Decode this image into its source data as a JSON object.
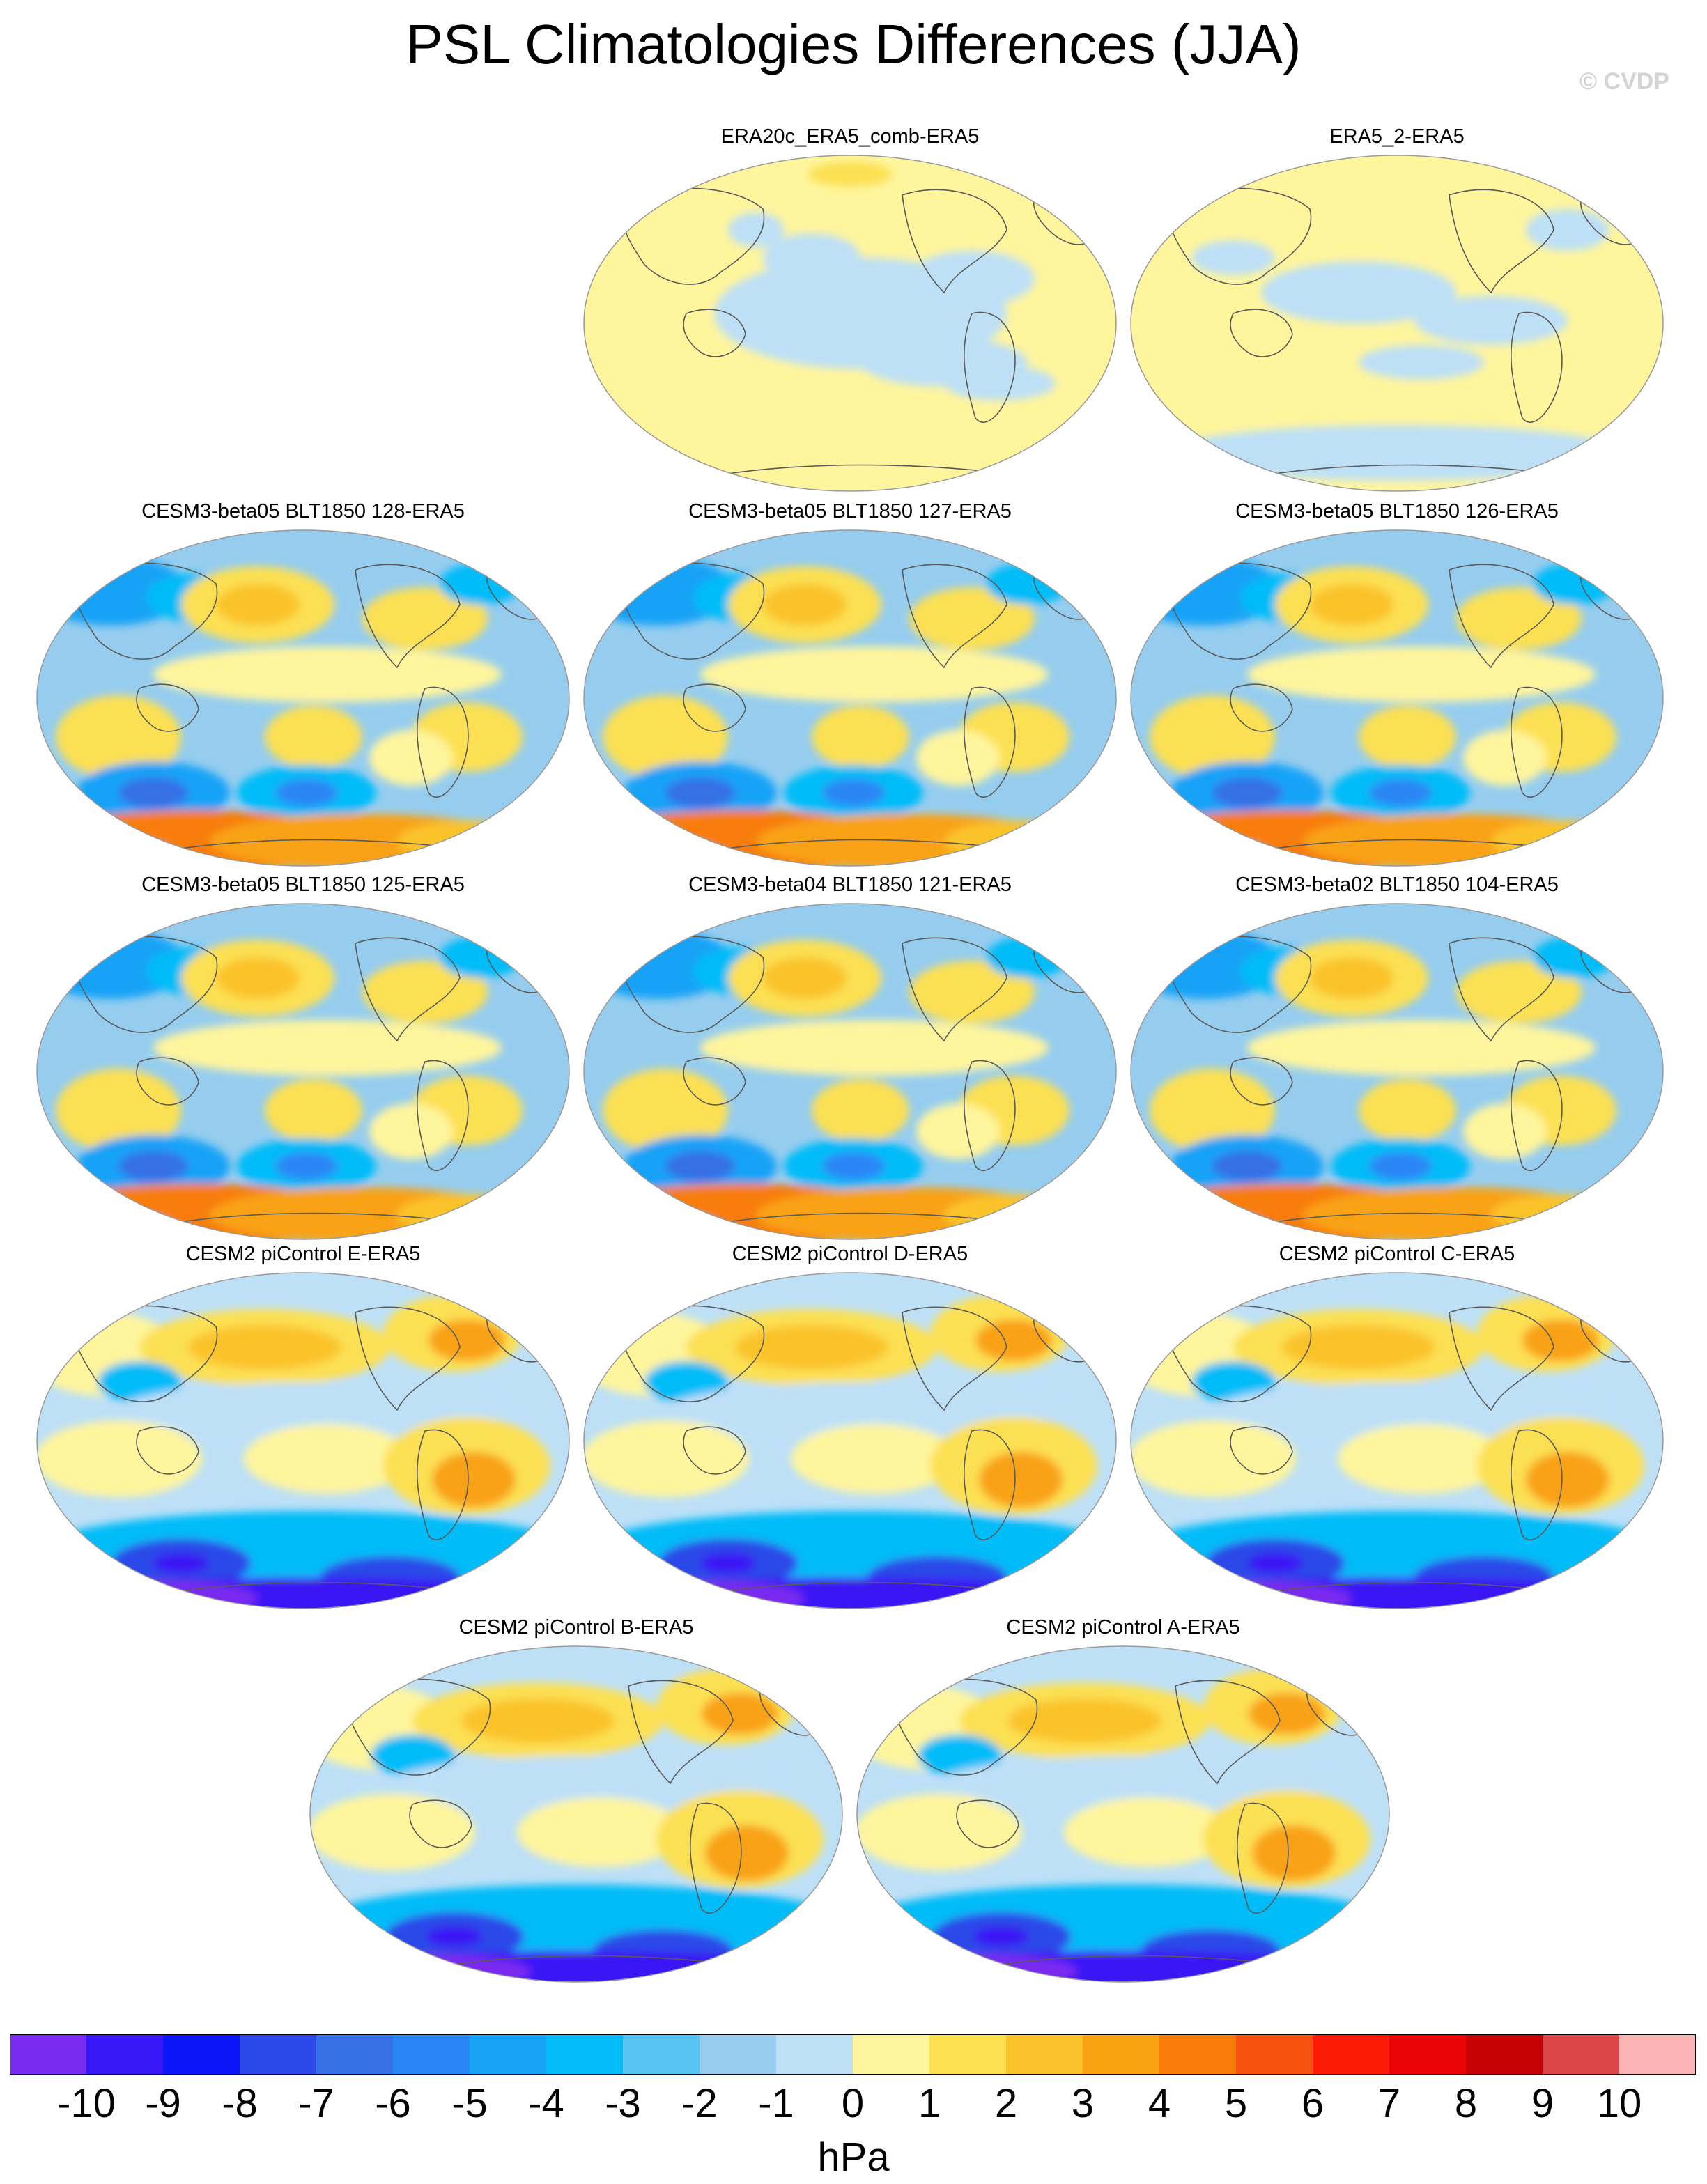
{
  "title": "PSL Climatologies Differences (JJA)",
  "watermark": "© CVDP",
  "colors": {
    "contour_levels": [
      "#7a2bf0",
      "#3a17f5",
      "#0c14f8",
      "#2c48e8",
      "#3570e6",
      "#2b86f5",
      "#18a3f7",
      "#03bcf8",
      "#55c4f3",
      "#96cdef",
      "#bde0f7",
      "#fff59d",
      "#fce052",
      "#fbc32b",
      "#f9a212",
      "#f87d0a",
      "#f65310",
      "#fb1c07",
      "#ea0305",
      "#c70202",
      "#dc4646",
      "#fbb4b4"
    ],
    "land_outline": "#5a5a5a",
    "panel_border": "#9a9a9a"
  },
  "panels": [
    {
      "label": "ERA20c_ERA5_comb-ERA5",
      "pattern": "obs_a"
    },
    {
      "label": "ERA5_2-ERA5",
      "pattern": "obs_b"
    },
    {
      "label": "CESM3-beta05 BLT1850 128-ERA5",
      "pattern": "beta"
    },
    {
      "label": "CESM3-beta05 BLT1850 127-ERA5",
      "pattern": "beta"
    },
    {
      "label": "CESM3-beta05 BLT1850 126-ERA5",
      "pattern": "beta"
    },
    {
      "label": "CESM3-beta05 BLT1850 125-ERA5",
      "pattern": "beta"
    },
    {
      "label": "CESM3-beta04 BLT1850 121-ERA5",
      "pattern": "beta"
    },
    {
      "label": "CESM3-beta02 BLT1850 104-ERA5",
      "pattern": "beta"
    },
    {
      "label": "CESM2 piControl E-ERA5",
      "pattern": "cesm2"
    },
    {
      "label": "CESM2 piControl D-ERA5",
      "pattern": "cesm2"
    },
    {
      "label": "CESM2 piControl C-ERA5",
      "pattern": "cesm2"
    },
    {
      "label": "CESM2 piControl B-ERA5",
      "pattern": "cesm2"
    },
    {
      "label": "CESM2 piControl A-ERA5",
      "pattern": "cesm2"
    }
  ],
  "colorbar": {
    "tick_labels": [
      "-10",
      "-9",
      "-8",
      "-7",
      "-6",
      "-5",
      "-4",
      "-3",
      "-2",
      "-1",
      "0",
      "1",
      "2",
      "3",
      "4",
      "5",
      "6",
      "7",
      "8",
      "9",
      "10"
    ],
    "units": "hPa"
  }
}
